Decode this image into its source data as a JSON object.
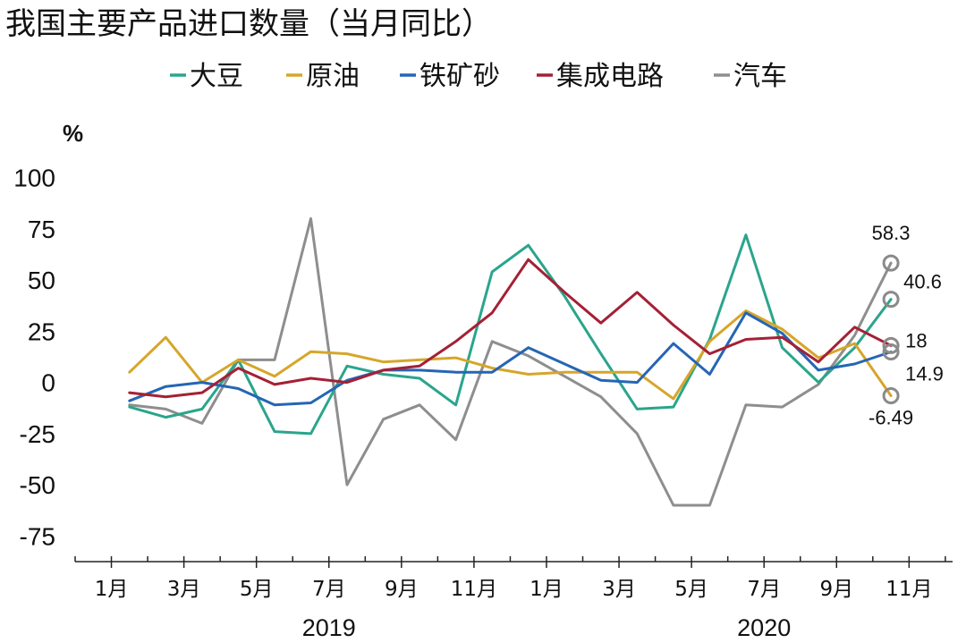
{
  "colors": {
    "soybean": "#2aa58c",
    "crude_oil": "#d6a62a",
    "iron_ore": "#2565b5",
    "ic": "#a52035",
    "cars": "#8e8e8e"
  },
  "chart_data": {
    "type": "line",
    "title": "我国主要产品进口数量（当月同比）",
    "ylabel": "%",
    "ylim": [
      -87.5,
      112.5
    ],
    "yticks": [
      100,
      75,
      50,
      25,
      0,
      -25,
      -50,
      -75
    ],
    "ytick_labels": [
      "100",
      "75",
      "50",
      "25",
      "0",
      "-25",
      "-50",
      "-75"
    ],
    "x_tick_positions": [
      1,
      3,
      5,
      7,
      9,
      11,
      13,
      15,
      17,
      19,
      21,
      23
    ],
    "x_tick_labels": [
      "1月",
      "3月",
      "5月",
      "7月",
      "9月",
      "11月",
      "1月",
      "3月",
      "5月",
      "7月",
      "9月",
      "11月"
    ],
    "years": [
      {
        "label": "2019",
        "center": 7
      },
      {
        "label": "2020",
        "center": 19
      }
    ],
    "x": [
      1.5,
      2.5,
      3.5,
      4.5,
      5.5,
      6.5,
      7.5,
      8.5,
      9.5,
      10.5,
      11.5,
      12.5,
      13.5,
      14.5,
      15.5,
      16.5,
      17.5,
      18.5,
      19.5,
      20.5,
      21.5,
      22.5
    ],
    "legend": [
      "大豆",
      "原油",
      "铁矿砂",
      "集成电路",
      "汽车"
    ],
    "legend_position": "top",
    "grid": false,
    "series": [
      {
        "name": "大豆",
        "color_key": "soybean",
        "values": [
          -12,
          -17,
          -13,
          11,
          -24,
          -25,
          8,
          4,
          2,
          -11,
          54,
          67,
          42,
          14,
          -13,
          -12,
          21,
          72,
          17,
          0,
          17,
          40.6
        ]
      },
      {
        "name": "原油",
        "color_key": "crude_oil",
        "values": [
          5,
          22,
          0,
          11,
          3,
          15,
          14,
          10,
          11,
          12,
          7,
          4,
          5,
          5,
          5,
          -8,
          20,
          35,
          26,
          12,
          19,
          -6.49
        ]
      },
      {
        "name": "铁矿砂",
        "color_key": "iron_ore",
        "values": [
          -9,
          -2,
          0,
          -3,
          -11,
          -10,
          1,
          6,
          6,
          5,
          5,
          17,
          9,
          1,
          0,
          19,
          4,
          34,
          24,
          6,
          9,
          14.9
        ]
      },
      {
        "name": "集成电路",
        "color_key": "ic",
        "values": [
          -5,
          -7,
          -5,
          7,
          -1,
          2,
          0,
          6,
          8,
          20,
          34,
          60,
          44,
          29,
          44,
          28,
          14,
          21,
          22,
          10,
          27,
          18
        ]
      },
      {
        "name": "汽车",
        "color_key": "cars",
        "values": [
          -11,
          -13,
          -20,
          11,
          11,
          80,
          -50,
          -18,
          -11,
          -28,
          20,
          13,
          3,
          -7,
          -25,
          -60,
          -60,
          -11,
          -12,
          -1,
          23,
          58.3
        ]
      }
    ],
    "annotations": [
      {
        "series": "汽车",
        "label": "58.3"
      },
      {
        "series": "大豆",
        "label": "40.6"
      },
      {
        "series": "集成电路",
        "label": "18"
      },
      {
        "series": "铁矿砂",
        "label": "14.9"
      },
      {
        "series": "原油",
        "label": "-6.49"
      }
    ]
  }
}
